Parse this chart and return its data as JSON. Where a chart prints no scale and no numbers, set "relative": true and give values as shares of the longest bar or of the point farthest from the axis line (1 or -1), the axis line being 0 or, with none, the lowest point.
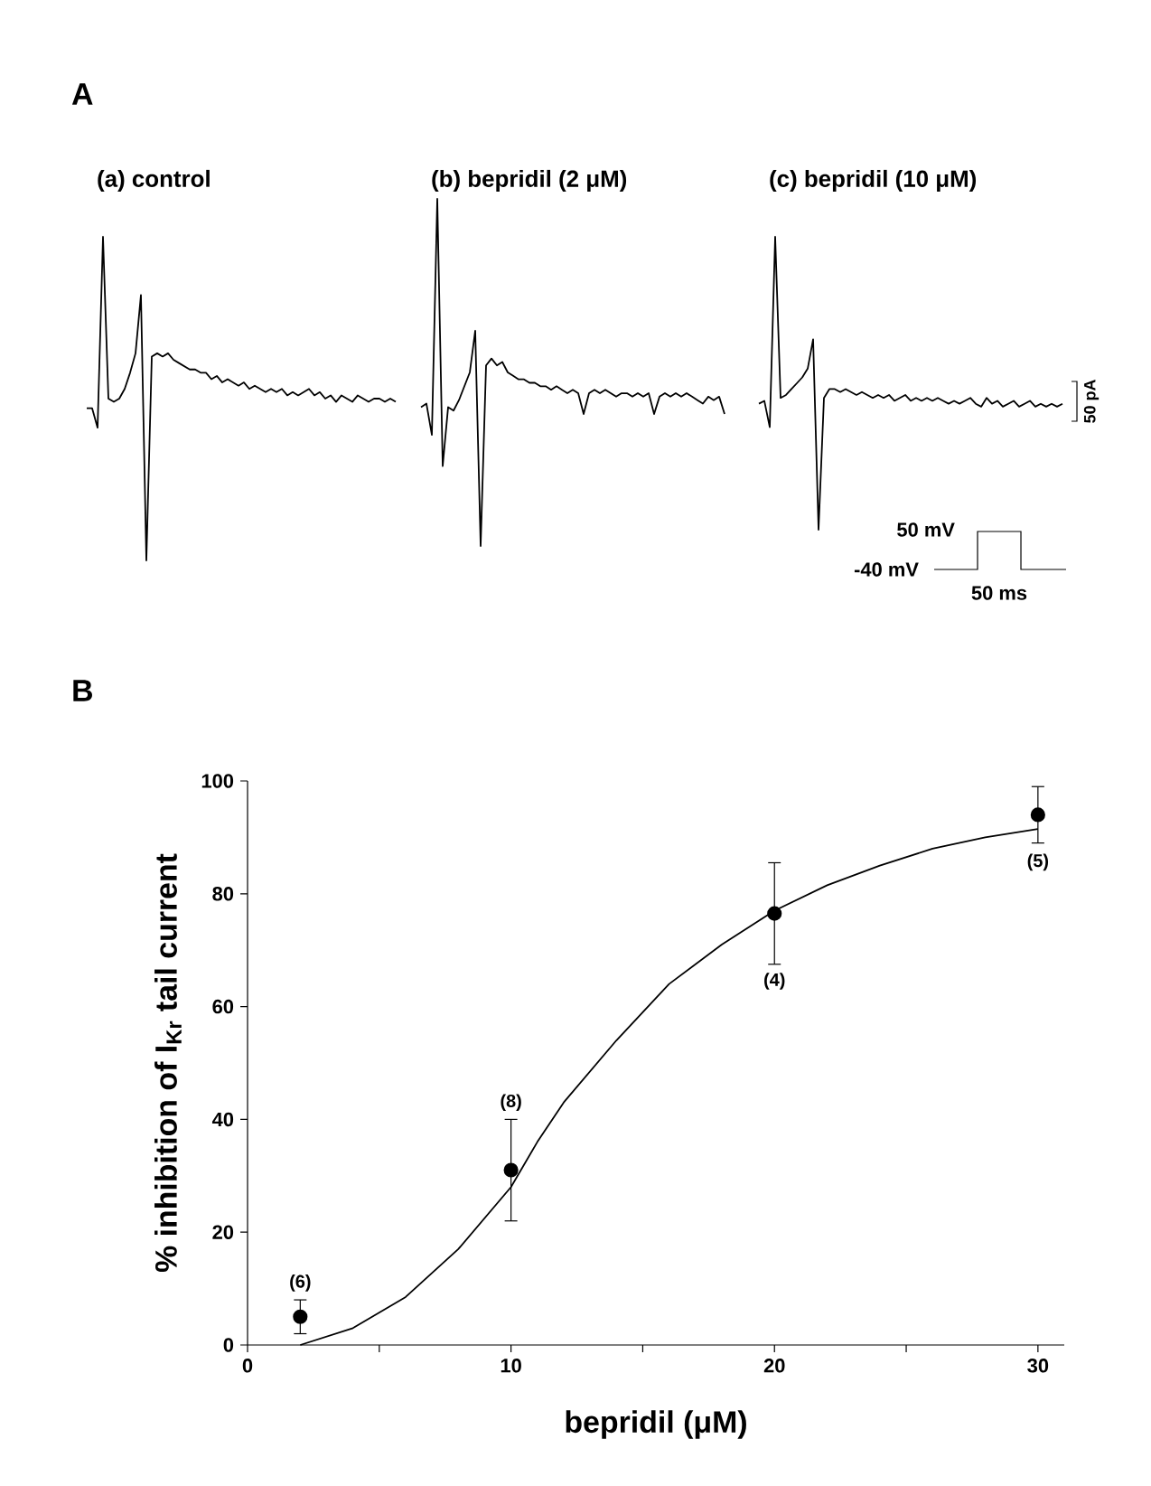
{
  "chart_data": [
    {
      "type": "line",
      "title": "(a)  control",
      "relative": true,
      "color": "#000000",
      "annotations": [
        "A"
      ],
      "categories": [
        null,
        null,
        null,
        null,
        null,
        null,
        null,
        null,
        null,
        null,
        null,
        null,
        null,
        null,
        null,
        null,
        null,
        null,
        null,
        null,
        null,
        null,
        null,
        null,
        null,
        null,
        null,
        null,
        null,
        null,
        null,
        null,
        null,
        null,
        null,
        null,
        null,
        null,
        null,
        null,
        null,
        null,
        null,
        null,
        null,
        null,
        null,
        null,
        null,
        null,
        null,
        null,
        null,
        null,
        null,
        null,
        null,
        null
      ],
      "values": [
        0.47,
        0.47,
        0.41,
        1.0,
        0.5,
        0.49,
        0.5,
        0.53,
        0.58,
        0.64,
        0.82,
        0,
        0.63,
        0.64,
        0.63,
        0.64,
        0.62,
        0.61,
        0.6,
        0.59,
        0.59,
        0.58,
        0.58,
        0.56,
        0.57,
        0.55,
        0.56,
        0.55,
        0.54,
        0.55,
        0.53,
        0.54,
        0.53,
        0.52,
        0.53,
        0.52,
        0.53,
        0.51,
        0.52,
        0.51,
        0.52,
        0.53,
        0.51,
        0.52,
        0.5,
        0.51,
        0.49,
        0.51,
        0.5,
        0.49,
        0.51,
        0.5,
        0.49,
        0.5,
        0.5,
        0.49,
        0.5,
        0.49
      ]
    },
    {
      "type": "line",
      "title": "(b)  bepridil (2 μM)",
      "relative": true,
      "color": "#000000",
      "categories": [
        null,
        null,
        null,
        null,
        null,
        null,
        null,
        null,
        null,
        null,
        null,
        null,
        null,
        null,
        null,
        null,
        null,
        null,
        null,
        null,
        null,
        null,
        null,
        null,
        null,
        null,
        null,
        null,
        null,
        null,
        null,
        null,
        null,
        null,
        null,
        null,
        null,
        null,
        null,
        null,
        null,
        null,
        null,
        null,
        null,
        null,
        null,
        null,
        null,
        null,
        null,
        null,
        null,
        null,
        null,
        null,
        null
      ],
      "values": [
        0.4,
        0.41,
        0.32,
        1.0,
        0.23,
        0.4,
        0.39,
        0.42,
        0.46,
        0.5,
        0.62,
        0,
        0.52,
        0.54,
        0.52,
        0.53,
        0.5,
        0.49,
        0.48,
        0.48,
        0.47,
        0.47,
        0.46,
        0.46,
        0.45,
        0.46,
        0.45,
        0.44,
        0.45,
        0.44,
        0.38,
        0.44,
        0.45,
        0.44,
        0.45,
        0.44,
        0.43,
        0.44,
        0.44,
        0.43,
        0.44,
        0.43,
        0.44,
        0.38,
        0.43,
        0.44,
        0.43,
        0.44,
        0.43,
        0.44,
        0.43,
        0.42,
        0.41,
        0.43,
        0.42,
        0.43,
        0.38
      ]
    },
    {
      "type": "line",
      "title": "(c)  bepridil (10 μM)",
      "relative": true,
      "color": "#000000",
      "annotations": [
        "50 pA",
        "50 mV",
        "-40 mV",
        "50 ms"
      ],
      "categories": [
        null,
        null,
        null,
        null,
        null,
        null,
        null,
        null,
        null,
        null,
        null,
        null,
        null,
        null,
        null,
        null,
        null,
        null,
        null,
        null,
        null,
        null,
        null,
        null,
        null,
        null,
        null,
        null,
        null,
        null,
        null,
        null,
        null,
        null,
        null,
        null,
        null,
        null,
        null,
        null,
        null,
        null,
        null,
        null,
        null,
        null,
        null,
        null,
        null,
        null,
        null,
        null,
        null,
        null,
        null,
        null,
        null
      ],
      "values": [
        0.43,
        0.44,
        0.35,
        1.0,
        0.45,
        0.46,
        0.48,
        0.5,
        0.52,
        0.55,
        0.65,
        0,
        0.45,
        0.48,
        0.48,
        0.47,
        0.48,
        0.47,
        0.46,
        0.47,
        0.46,
        0.45,
        0.46,
        0.45,
        0.46,
        0.44,
        0.45,
        0.46,
        0.44,
        0.45,
        0.44,
        0.45,
        0.44,
        0.45,
        0.44,
        0.43,
        0.44,
        0.43,
        0.44,
        0.45,
        0.43,
        0.42,
        0.45,
        0.43,
        0.44,
        0.42,
        0.43,
        0.44,
        0.42,
        0.43,
        0.44,
        0.42,
        0.43,
        0.42,
        0.43,
        0.42,
        0.43
      ]
    },
    {
      "type": "scatter",
      "xlabel": "bepridil  (μM)",
      "ylabel": "% inhibition of I$_{Kr}$ tail current",
      "xlim": [
        0,
        31
      ],
      "ylim": [
        0,
        100
      ],
      "xticks": [
        0,
        {
          "value": 5,
          "label": null
        },
        10,
        {
          "value": 15,
          "label": null
        },
        20,
        {
          "value": 25,
          "label": null
        },
        30
      ],
      "yticks": [
        0,
        20,
        40,
        60,
        80,
        100
      ],
      "series": [
        {
          "type": "scatter",
          "marker": "circle",
          "color": "#000000",
          "x": [
            2,
            10,
            20,
            30
          ],
          "values": [
            5,
            31,
            76.5,
            94
          ],
          "errors": [
            [
              2,
              8
            ],
            [
              22,
              40
            ],
            [
              67.5,
              85.5
            ],
            [
              89,
              99
            ]
          ]
        },
        {
          "type": "line",
          "color": "#000000",
          "x": [
            2,
            4,
            6,
            8,
            10,
            11,
            12,
            14,
            16,
            18,
            20,
            22,
            24,
            26,
            28,
            30
          ],
          "values": [
            0,
            3,
            8.5,
            17,
            28,
            36,
            43,
            54,
            64,
            71,
            77,
            81.5,
            85,
            88,
            90,
            91.5
          ]
        }
      ],
      "annotations": [
        "B",
        "(6)",
        "(8)",
        "(4)",
        "(5)"
      ]
    }
  ]
}
